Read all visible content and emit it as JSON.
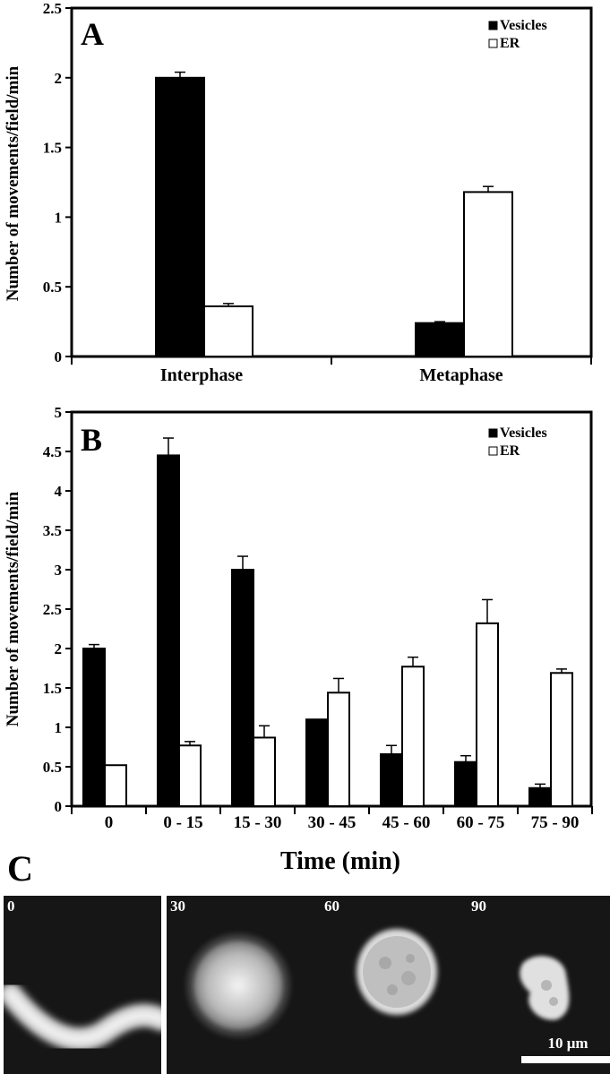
{
  "chart_data": [
    {
      "panel": "A",
      "type": "bar",
      "title": "",
      "xlabel": "",
      "ylabel": "Number of movements/field/min",
      "ylim": [
        0,
        2.5
      ],
      "yticks": [
        "0",
        "0.5",
        "1",
        "1.5",
        "2",
        "2.5"
      ],
      "categories": [
        "Interphase",
        "Metaphase"
      ],
      "series": [
        {
          "name": "Vesicles",
          "color": "#000000",
          "values": [
            2.0,
            0.24
          ],
          "errors": [
            0.04,
            0.01
          ]
        },
        {
          "name": "ER",
          "color": "#ffffff",
          "values": [
            0.36,
            1.18
          ],
          "errors": [
            0.02,
            0.04
          ]
        }
      ],
      "legend": [
        "Vesicles",
        "ER"
      ],
      "legend_position": "top-right",
      "grid": false
    },
    {
      "panel": "B",
      "type": "bar",
      "title": "",
      "xlabel": "Time (min)",
      "ylabel": "Number of movements/field/min",
      "ylim": [
        0,
        5
      ],
      "yticks": [
        "0",
        "0.5",
        "1",
        "1.5",
        "2",
        "2.5",
        "3",
        "3.5",
        "4",
        "4.5",
        "5"
      ],
      "categories": [
        "0",
        "0 - 15",
        "15 - 30",
        "30 - 45",
        "45 - 60",
        "60 - 75",
        "75 - 90"
      ],
      "series": [
        {
          "name": "Vesicles",
          "color": "#000000",
          "values": [
            2.0,
            4.45,
            3.0,
            1.1,
            0.66,
            0.56,
            0.23
          ],
          "errors": [
            0.05,
            0.22,
            0.17,
            0.0,
            0.11,
            0.08,
            0.05
          ]
        },
        {
          "name": "ER",
          "color": "#ffffff",
          "values": [
            0.52,
            0.77,
            0.87,
            1.44,
            1.77,
            2.32,
            1.69
          ],
          "errors": [
            0.0,
            0.05,
            0.15,
            0.18,
            0.12,
            0.3,
            0.05
          ]
        }
      ],
      "legend": [
        "Vesicles",
        "ER"
      ],
      "legend_position": "top-right",
      "grid": false
    }
  ],
  "panel_c": {
    "letter": "C",
    "images": [
      {
        "time_label": "0",
        "shape": "curved-rod"
      },
      {
        "time_label": "30",
        "shape": "round-bright"
      },
      {
        "time_label": "60",
        "shape": "round-mottled"
      },
      {
        "time_label": "90",
        "shape": "small-irregular"
      }
    ],
    "scale_bar_label": "10 μm"
  }
}
